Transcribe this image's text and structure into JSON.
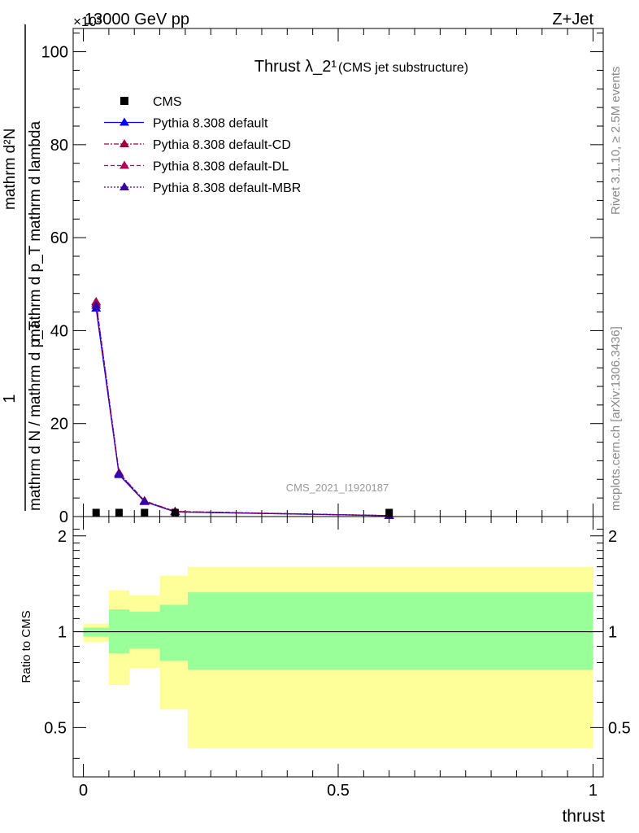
{
  "header": {
    "left": "13000 GeV pp",
    "right": "Z+Jet",
    "scale_marker": "×10³"
  },
  "side_text": {
    "rivet": "Rivet 3.1.10, ≥ 2.5M events",
    "mcplots": "mcplots.cern.ch [arXiv:1306.3436]"
  },
  "watermark": "CMS_2021_I1920187",
  "chart_data": [
    {
      "type": "line",
      "title": "Thrust λ_2¹",
      "subtitle": "(CMS jet substructure)",
      "xlabel": "thrust",
      "ylabel_parts": {
        "numerator": "1",
        "denominator": "mathrm d N / mathrm d p_T",
        "rhs_top": "mathrm d²N",
        "rhs_bottom": "mathrm d p_T mathrm d lambda"
      },
      "xlim": [
        -0.02,
        1.02
      ],
      "ylim": [
        0,
        105
      ],
      "y_scale_factor": "×10³",
      "xticks": [
        "0",
        "0.5",
        "1"
      ],
      "yticks": [
        "0",
        "20",
        "40",
        "60",
        "80",
        "100"
      ],
      "legend_position": "top-left",
      "data_series": {
        "name": "CMS",
        "x": [
          0.025,
          0.07,
          0.12,
          0.18,
          0.6
        ],
        "y": [
          0.1,
          0.1,
          0.1,
          0.1,
          0.1
        ]
      },
      "series": [
        {
          "name": "Pythia 8.308 default",
          "color": "#0000ff",
          "dash": "",
          "x": [
            0.025,
            0.07,
            0.12,
            0.18,
            0.6
          ],
          "y": [
            44.8,
            9.0,
            3.2,
            1.0,
            0.2
          ]
        },
        {
          "name": "Pythia 8.308 default-CD",
          "color": "#a0003c",
          "dash": "6,2,2,2",
          "x": [
            0.025,
            0.07,
            0.12,
            0.18,
            0.6
          ],
          "y": [
            46.2,
            9.4,
            3.4,
            1.1,
            0.2
          ]
        },
        {
          "name": "Pythia 8.308 default-DL",
          "color": "#b0005a",
          "dash": "5,3",
          "x": [
            0.025,
            0.07,
            0.12,
            0.18,
            0.6
          ],
          "y": [
            45.9,
            9.3,
            3.3,
            1.1,
            0.2
          ]
        },
        {
          "name": "Pythia 8.308 default-MBR",
          "color": "#3a00a0",
          "dash": "2,2",
          "x": [
            0.025,
            0.07,
            0.12,
            0.18,
            0.6
          ],
          "y": [
            45.4,
            9.2,
            3.3,
            1.0,
            0.2
          ]
        }
      ]
    },
    {
      "type": "area",
      "ylabel": "Ratio to CMS",
      "xlabel": "thrust",
      "xlim": [
        -0.02,
        1.02
      ],
      "ylim": [
        0.35,
        2.3
      ],
      "yticks": [
        "0.5",
        "1",
        "2"
      ],
      "xticks": [
        "0",
        "0.5",
        "1"
      ],
      "reference_line": 1,
      "bins": [
        {
          "xlo": 0.0,
          "xhi": 0.05,
          "inner": [
            0.965,
            1.03
          ],
          "outer": [
            0.93,
            1.06
          ]
        },
        {
          "xlo": 0.05,
          "xhi": 0.09,
          "inner": [
            0.855,
            1.175
          ],
          "outer": [
            0.68,
            1.35
          ]
        },
        {
          "xlo": 0.09,
          "xhi": 0.15,
          "inner": [
            0.885,
            1.155
          ],
          "outer": [
            0.77,
            1.3
          ]
        },
        {
          "xlo": 0.15,
          "xhi": 0.205,
          "inner": [
            0.81,
            1.215
          ],
          "outer": [
            0.57,
            1.5
          ]
        },
        {
          "xlo": 0.205,
          "xhi": 1.0,
          "inner": [
            0.76,
            1.33
          ],
          "outer": [
            0.43,
            1.6
          ]
        }
      ],
      "colors": {
        "inner": "#99ff99",
        "outer": "#ffff99"
      }
    }
  ]
}
